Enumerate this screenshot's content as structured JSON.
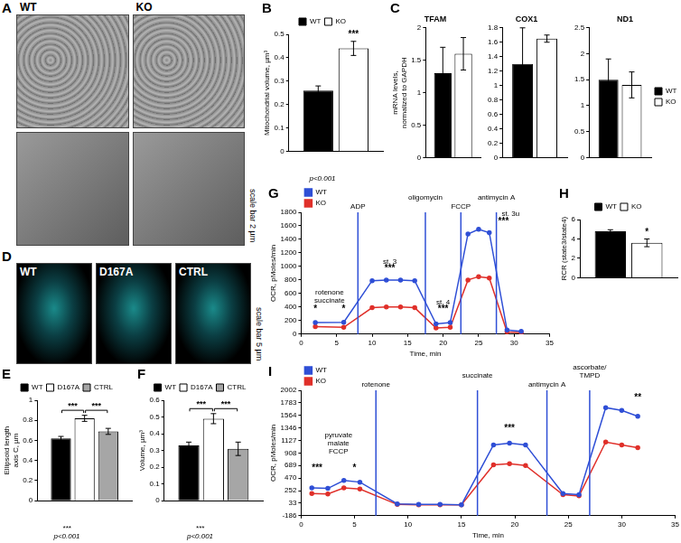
{
  "image_panels": [
    {
      "panel": "A",
      "labels": [
        "WT",
        "KO"
      ],
      "scale_bar": "scale bar 2 µm"
    },
    {
      "panel": "D",
      "labels": [
        "WT",
        "D167A",
        "CTRL"
      ],
      "scale_bar": "scale bar 5 µm"
    }
  ],
  "chart_data": [
    {
      "panel": "B",
      "type": "bar",
      "y_label": "Mitochondrial volume, µm³",
      "categories": [
        null
      ],
      "series": [
        {
          "name": "WT",
          "color": "#000000",
          "values": [
            0.26
          ],
          "errors": [
            0.02
          ]
        },
        {
          "name": "KO",
          "color": "#ffffff",
          "values": [
            0.44
          ],
          "errors": [
            0.03
          ]
        }
      ],
      "ylim": [
        0,
        0.5
      ],
      "yticks": [
        0,
        0.1,
        0.2,
        0.3,
        0.4,
        0.5
      ],
      "grid": false,
      "legend": "top",
      "annotations": [
        {
          "series": "KO",
          "y": 0.48,
          "text": "***"
        }
      ],
      "footnote": [
        "p<0.001"
      ]
    },
    {
      "panel": "C",
      "type": "bar",
      "title": "TFAM",
      "y_label": [
        "mRNA levels,",
        "normalized to GAPDH"
      ],
      "categories": [
        null
      ],
      "series": [
        {
          "name": "WT",
          "color": "#000000",
          "values": [
            1.3
          ],
          "errors": [
            0.4
          ]
        },
        {
          "name": "KO",
          "color": "#ffffff",
          "values": [
            1.6
          ],
          "errors": [
            0.25
          ]
        }
      ],
      "ylim": [
        0,
        2
      ],
      "yticks": [
        0,
        0.5,
        1,
        1.5,
        2
      ],
      "grid": false
    },
    {
      "panel": "C",
      "type": "bar",
      "title": "COX1",
      "categories": [
        null
      ],
      "series": [
        {
          "name": "WT",
          "color": "#000000",
          "values": [
            1.3
          ],
          "errors": [
            0.5
          ]
        },
        {
          "name": "KO",
          "color": "#ffffff",
          "values": [
            1.65
          ],
          "errors": [
            0.05
          ]
        }
      ],
      "ylim": [
        0,
        1.8
      ],
      "yticks": [
        0,
        0.2,
        0.4,
        0.6,
        0.8,
        1,
        1.2,
        1.4,
        1.6,
        1.8
      ],
      "grid": false
    },
    {
      "panel": "C",
      "type": "bar",
      "title": "ND1",
      "categories": [
        null
      ],
      "series": [
        {
          "name": "WT",
          "color": "#000000",
          "values": [
            1.5
          ],
          "errors": [
            0.4
          ]
        },
        {
          "name": "KO",
          "color": "#ffffff",
          "values": [
            1.4
          ],
          "errors": [
            0.25
          ]
        }
      ],
      "ylim": [
        0,
        2.5
      ],
      "yticks": [
        0,
        0.5,
        1,
        1.5,
        2,
        2.5
      ],
      "grid": false,
      "legend": "right"
    },
    {
      "panel": "E",
      "type": "bar",
      "y_label": [
        "Ellipsoid length",
        "axis C, µm"
      ],
      "categories": [
        null
      ],
      "series": [
        {
          "name": "WT",
          "color": "#000000",
          "values": [
            0.62
          ],
          "errors": [
            0.02
          ]
        },
        {
          "name": "D167A",
          "color": "#ffffff",
          "values": [
            0.82
          ],
          "errors": [
            0.03
          ]
        },
        {
          "name": "CTRL",
          "color": "#a6a6a6",
          "values": [
            0.69
          ],
          "errors": [
            0.03
          ]
        }
      ],
      "ylim": [
        0,
        1
      ],
      "yticks": [
        0,
        0.2,
        0.4,
        0.6,
        0.8,
        1
      ],
      "grid": false,
      "legend": "top",
      "brackets": [
        {
          "from": "WT",
          "to": "D167A",
          "y": 0.9,
          "text": "***"
        },
        {
          "from": "D167A",
          "to": "CTRL",
          "y": 0.9,
          "text": "***"
        }
      ],
      "footnote": [
        "***",
        "p<0.001"
      ]
    },
    {
      "panel": "F",
      "type": "bar",
      "y_label": "Volume, µm³",
      "categories": [
        null
      ],
      "series": [
        {
          "name": "WT",
          "color": "#000000",
          "values": [
            0.33
          ],
          "errors": [
            0.02
          ]
        },
        {
          "name": "D167A",
          "color": "#ffffff",
          "values": [
            0.49
          ],
          "errors": [
            0.03
          ]
        },
        {
          "name": "CTRL",
          "color": "#a6a6a6",
          "values": [
            0.31
          ],
          "errors": [
            0.04
          ]
        }
      ],
      "ylim": [
        0,
        0.6
      ],
      "yticks": [
        0,
        0.1,
        0.2,
        0.3,
        0.4,
        0.5,
        0.6
      ],
      "grid": false,
      "legend": "top",
      "brackets": [
        {
          "from": "WT",
          "to": "D167A",
          "y": 0.55,
          "text": "***"
        },
        {
          "from": "D167A",
          "to": "CTRL",
          "y": 0.55,
          "text": "***"
        }
      ],
      "footnote": [
        "***",
        "p<0.001"
      ]
    },
    {
      "panel": "G",
      "type": "line",
      "x_label": "Time, min",
      "y_label": "OCR, pMoles/min",
      "x": [
        2,
        6,
        10,
        12,
        14,
        16,
        19,
        21,
        23.5,
        25,
        26.5,
        29,
        31
      ],
      "series": [
        {
          "name": "WT",
          "color": "#2f4fd6",
          "values": [
            170,
            175,
            790,
            800,
            800,
            790,
            150,
            170,
            1480,
            1550,
            1500,
            60,
            40
          ]
        },
        {
          "name": "KO",
          "color": "#e0302a",
          "values": [
            110,
            100,
            390,
            400,
            400,
            390,
            90,
            100,
            800,
            850,
            830,
            30,
            20
          ]
        }
      ],
      "xlim": [
        0,
        35
      ],
      "xticks": [
        0,
        5,
        10,
        15,
        20,
        25,
        30,
        35
      ],
      "ylim": [
        0,
        1800
      ],
      "yticks": [
        0,
        200,
        400,
        600,
        800,
        1000,
        1200,
        1400,
        1600,
        1800
      ],
      "grid": false,
      "legend": "top-left",
      "events": [
        {
          "x": 8,
          "label": [
            "ADP"
          ]
        },
        {
          "x": 17.5,
          "label": [
            "oligomycin"
          ]
        },
        {
          "x": 22.5,
          "label": [
            "FCCP"
          ]
        },
        {
          "x": 27.5,
          "label": [
            "antimycin A"
          ]
        }
      ],
      "annotations": [
        {
          "x": 4,
          "y": 560,
          "text": [
            "rotenone",
            "succinate"
          ]
        },
        {
          "x": 2,
          "y": 300,
          "text": "*"
        },
        {
          "x": 6,
          "y": 300,
          "text": "*"
        },
        {
          "x": 12.5,
          "y": 1010,
          "text": "st. 3"
        },
        {
          "x": 12.5,
          "y": 900,
          "text": "***"
        },
        {
          "x": 20,
          "y": 420,
          "text": "st. 4"
        },
        {
          "x": 20,
          "y": 300,
          "text": "***"
        },
        {
          "x": 29.5,
          "y": 1720,
          "text": "st. 3u"
        },
        {
          "x": 28.5,
          "y": 1600,
          "text": "***"
        }
      ]
    },
    {
      "panel": "H",
      "type": "bar",
      "y_label": "RCR (state3/state4)",
      "categories": [
        null
      ],
      "series": [
        {
          "name": "WT",
          "color": "#000000",
          "values": [
            4.8
          ],
          "errors": [
            0.15
          ]
        },
        {
          "name": "KO",
          "color": "#ffffff",
          "values": [
            3.6
          ],
          "errors": [
            0.4
          ]
        }
      ],
      "ylim": [
        0,
        6
      ],
      "yticks": [
        0,
        2,
        4,
        6
      ],
      "grid": false,
      "legend": "top",
      "annotations": [
        {
          "series": "KO",
          "y": 4.2,
          "text": "*"
        }
      ]
    },
    {
      "panel": "I",
      "type": "line",
      "x_label": "Time, min",
      "y_label": "OCR, pMoles/min",
      "x": [
        1,
        2.5,
        4,
        5.5,
        9,
        11,
        13,
        15,
        18,
        19.5,
        21,
        24.5,
        26,
        28.5,
        30,
        31.5
      ],
      "series": [
        {
          "name": "WT",
          "color": "#2f4fd6",
          "values": [
            300,
            290,
            430,
            400,
            20,
            10,
            10,
            5,
            1050,
            1080,
            1050,
            200,
            180,
            1700,
            1650,
            1550
          ]
        },
        {
          "name": "KO",
          "color": "#e0302a",
          "values": [
            200,
            195,
            300,
            280,
            10,
            5,
            5,
            5,
            700,
            720,
            690,
            180,
            160,
            1100,
            1050,
            1000
          ]
        }
      ],
      "xlim": [
        0,
        35
      ],
      "xticks": [
        0,
        5,
        10,
        15,
        20,
        25,
        30,
        35
      ],
      "ylim": [
        -186,
        2002
      ],
      "yticks": [
        -186,
        33,
        252,
        470,
        689,
        908,
        1127,
        1346,
        1564,
        1783,
        2002
      ],
      "grid": false,
      "legend": "top-left",
      "events": [
        {
          "x": 7,
          "label": [
            "rotenone"
          ]
        },
        {
          "x": 16.5,
          "label": [
            "succinate"
          ]
        },
        {
          "x": 23,
          "label": [
            "antimycin A"
          ]
        },
        {
          "x": 27,
          "label": [
            "ascorbate/",
            "TMPD"
          ]
        }
      ],
      "annotations": [
        {
          "x": 3.5,
          "y": 1150,
          "text": [
            "pyruvate",
            "malate",
            "FCCP"
          ]
        },
        {
          "x": 1.5,
          "y": 560,
          "text": "***"
        },
        {
          "x": 5,
          "y": 560,
          "text": "*"
        },
        {
          "x": 19.5,
          "y": 1250,
          "text": "***"
        },
        {
          "x": 31.5,
          "y": 1800,
          "text": "**"
        }
      ]
    }
  ]
}
